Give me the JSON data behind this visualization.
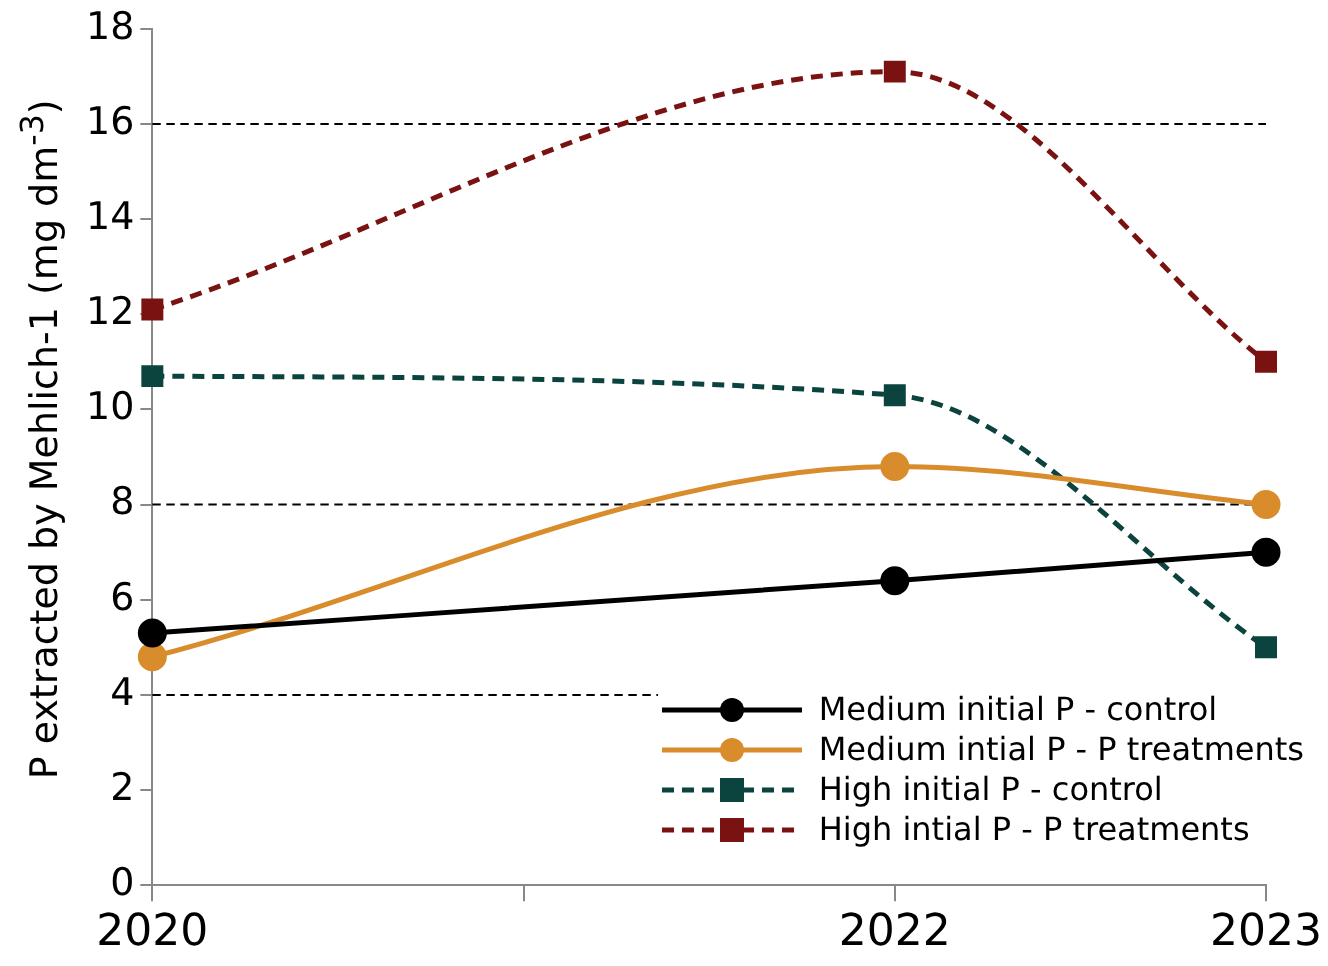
{
  "chart_data": {
    "type": "line",
    "ylabel": "P extracted by Mehlich-1 (mg dm$^{-3}$)",
    "x": [
      2020,
      2022,
      2023
    ],
    "xlim": [
      2020,
      2023
    ],
    "xticks": [
      2020,
      {
        "value": 2021,
        "label": null
      },
      2022,
      2023
    ],
    "ylim": [
      0,
      18
    ],
    "yticks": [
      0,
      2,
      4,
      6,
      8,
      10,
      12,
      14,
      16,
      18
    ],
    "grid": false,
    "legend": "bottom right",
    "ref_lines": [
      {
        "axis": "y",
        "value": 4,
        "color": "#000000",
        "line_style": "dashed"
      },
      {
        "axis": "y",
        "value": 8,
        "color": "#000000",
        "line_style": "dashed"
      },
      {
        "axis": "y",
        "value": 16,
        "color": "#000000",
        "line_style": "dashed"
      }
    ],
    "series": [
      {
        "name": "Medium initial P - control",
        "color": "#000000",
        "marker": "circle",
        "line_style": "solid",
        "values": [
          5.3,
          6.4,
          7.0
        ]
      },
      {
        "name": "Medium intial P - P treatments",
        "color": "#d98c2b",
        "marker": "circle",
        "line_style": "solid",
        "values": [
          4.8,
          8.8,
          8.0
        ]
      },
      {
        "name": "High initial P - control",
        "color": "#0b433e",
        "marker": "square",
        "line_style": "dashed",
        "values": [
          10.7,
          10.3,
          5.0
        ]
      },
      {
        "name": "High intial P - P treatments",
        "color": "#7a1212",
        "marker": "square",
        "line_style": "dashed",
        "values": [
          12.1,
          17.1,
          11.0
        ]
      }
    ]
  }
}
